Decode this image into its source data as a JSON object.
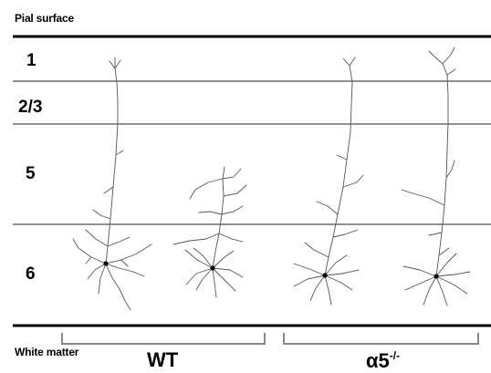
{
  "labels": {
    "top": "Pial surface",
    "bottom": "White matter"
  },
  "layers": [
    "1",
    "2/3",
    "5",
    "6"
  ],
  "groups": {
    "wt": "WT",
    "ko_base": "α5",
    "ko_sup": "-/-"
  },
  "colors": {
    "boundary": "#000000",
    "layer_line": "#222222",
    "bracket": "#888888",
    "neuron": "#555555",
    "soma": "#000000"
  }
}
